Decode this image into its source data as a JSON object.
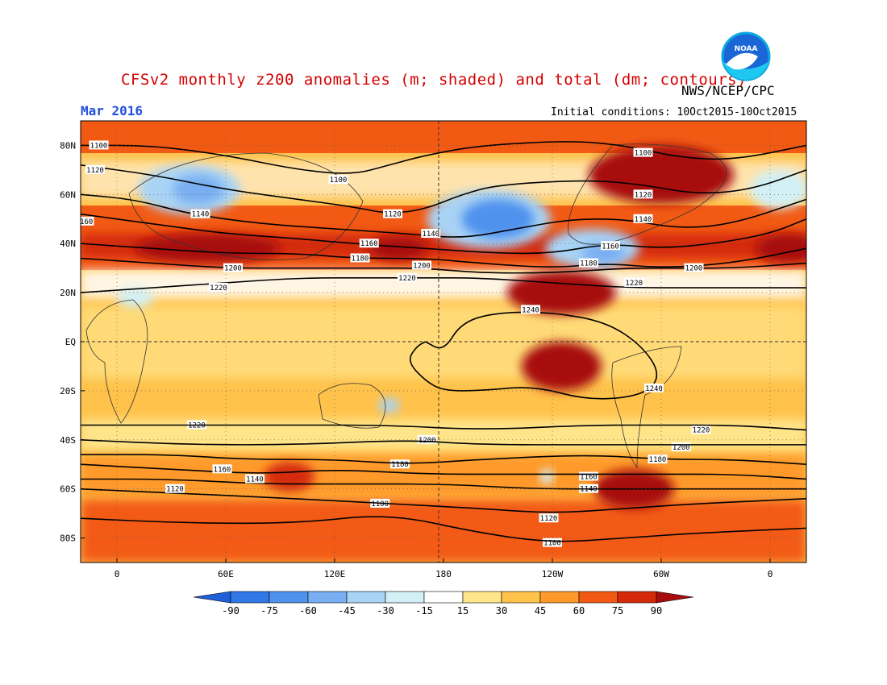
{
  "header": {
    "title": "CFSv2 monthly z200 anomalies (m; shaded) and total (dm; contours)",
    "agency": "NWS/NCEP/CPC",
    "month": "Mar 2016",
    "initial_conditions": "Initial conditions: 10Oct2015-10Oct2015",
    "logo_text": "NOAA"
  },
  "axes": {
    "lat_ticks": [
      "80N",
      "60N",
      "40N",
      "20N",
      "EQ",
      "20S",
      "40S",
      "60S",
      "80S"
    ],
    "lat_values": [
      80,
      60,
      40,
      20,
      0,
      -20,
      -40,
      -60,
      -80
    ],
    "lon_ticks": [
      "0",
      "60E",
      "120E",
      "180",
      "120W",
      "60W",
      "0"
    ],
    "lon_values": [
      0,
      60,
      120,
      180,
      240,
      300,
      360
    ],
    "lon_range": [
      -20,
      380
    ],
    "lat_range": [
      -90,
      90
    ]
  },
  "colorbar": {
    "labels": [
      "-90",
      "-75",
      "-60",
      "-45",
      "-30",
      "-15",
      "15",
      "30",
      "45",
      "60",
      "75",
      "90"
    ],
    "colors": [
      "#1f5fd8",
      "#2f78e6",
      "#4f92ee",
      "#78aef2",
      "#a9d3f5",
      "#d2f0f5",
      "#ffffff",
      "#ffe58a",
      "#ffc24a",
      "#ff9a2a",
      "#f25a14",
      "#d42a0a",
      "#a80c0c"
    ]
  },
  "contours": [
    {
      "label": "1100",
      "points": [
        [
          -20,
          80
        ],
        [
          20,
          80
        ],
        [
          60,
          76
        ],
        [
          100,
          70
        ],
        [
          130,
          68
        ],
        [
          150,
          72
        ],
        [
          170,
          76
        ],
        [
          200,
          80
        ],
        [
          250,
          82
        ],
        [
          280,
          80
        ],
        [
          310,
          75
        ],
        [
          340,
          74
        ],
        [
          380,
          80
        ]
      ],
      "label_at": [
        [
          -10,
          80
        ],
        [
          122,
          66
        ],
        [
          290,
          77
        ],
        [
          145,
          -66
        ],
        [
          240,
          -82
        ]
      ]
    },
    {
      "label": "1120",
      "points": [
        [
          -20,
          72
        ],
        [
          20,
          68
        ],
        [
          60,
          62
        ],
        [
          100,
          58
        ],
        [
          130,
          55
        ],
        [
          150,
          52
        ],
        [
          170,
          54
        ],
        [
          190,
          60
        ],
        [
          210,
          64
        ],
        [
          260,
          66
        ],
        [
          290,
          64
        ],
        [
          320,
          60
        ],
        [
          350,
          62
        ],
        [
          380,
          70
        ]
      ],
      "label_at": [
        [
          -12,
          70
        ],
        [
          152,
          52
        ],
        [
          290,
          60
        ],
        [
          238,
          -72
        ]
      ]
    },
    {
      "label": "1140",
      "points": [
        [
          -20,
          60
        ],
        [
          10,
          58
        ],
        [
          40,
          52
        ],
        [
          80,
          48
        ],
        [
          120,
          46
        ],
        [
          160,
          44
        ],
        [
          190,
          42
        ],
        [
          220,
          46
        ],
        [
          250,
          50
        ],
        [
          280,
          50
        ],
        [
          310,
          46
        ],
        [
          340,
          48
        ],
        [
          380,
          58
        ]
      ],
      "label_at": [
        [
          46,
          52
        ],
        [
          173,
          44
        ],
        [
          290,
          50
        ],
        [
          260,
          -60
        ]
      ]
    },
    {
      "label": "1160",
      "points": [
        [
          -20,
          52
        ],
        [
          20,
          48
        ],
        [
          60,
          44
        ],
        [
          100,
          42
        ],
        [
          130,
          40
        ],
        [
          170,
          38
        ],
        [
          210,
          36
        ],
        [
          240,
          36
        ],
        [
          270,
          40
        ],
        [
          300,
          38
        ],
        [
          330,
          40
        ],
        [
          360,
          44
        ],
        [
          380,
          50
        ]
      ],
      "label_at": [
        [
          -18,
          49
        ],
        [
          139,
          40
        ],
        [
          272,
          39
        ],
        [
          260,
          -55
        ]
      ]
    },
    {
      "label": "1180",
      "points": [
        [
          -20,
          40
        ],
        [
          20,
          38
        ],
        [
          60,
          36
        ],
        [
          100,
          36
        ],
        [
          130,
          34
        ],
        [
          170,
          34
        ],
        [
          200,
          32
        ],
        [
          240,
          30
        ],
        [
          270,
          32
        ],
        [
          300,
          30
        ],
        [
          340,
          32
        ],
        [
          380,
          38
        ]
      ],
      "label_at": [
        [
          134,
          34
        ],
        [
          260,
          32
        ],
        [
          156,
          -50
        ]
      ]
    },
    {
      "label": "1200",
      "points": [
        [
          -20,
          34
        ],
        [
          20,
          32
        ],
        [
          60,
          30
        ],
        [
          100,
          30
        ],
        [
          140,
          30
        ],
        [
          170,
          30
        ],
        [
          200,
          28
        ],
        [
          240,
          28
        ],
        [
          280,
          30
        ],
        [
          310,
          30
        ],
        [
          340,
          30
        ],
        [
          380,
          32
        ]
      ],
      "label_at": [
        [
          64,
          30
        ],
        [
          168,
          31
        ],
        [
          318,
          30
        ],
        [
          171,
          -40
        ],
        [
          311,
          -43
        ]
      ]
    },
    {
      "label": "1220",
      "points": [
        [
          -20,
          20
        ],
        [
          20,
          22
        ],
        [
          60,
          24
        ],
        [
          100,
          26
        ],
        [
          140,
          26
        ],
        [
          170,
          26
        ],
        [
          200,
          26
        ],
        [
          240,
          24
        ],
        [
          280,
          22
        ],
        [
          320,
          22
        ],
        [
          380,
          22
        ]
      ],
      "label_at": [
        [
          56,
          22
        ],
        [
          160,
          26
        ],
        [
          285,
          24
        ],
        [
          44,
          -34
        ],
        [
          322,
          -36
        ]
      ]
    },
    {
      "label": "1240",
      "points": [
        [
          170,
          0
        ],
        [
          180,
          -4
        ],
        [
          190,
          8
        ],
        [
          210,
          12
        ],
        [
          240,
          12
        ],
        [
          270,
          8
        ],
        [
          290,
          -2
        ],
        [
          300,
          -14
        ],
        [
          290,
          -22
        ],
        [
          260,
          -24
        ],
        [
          230,
          -18
        ],
        [
          200,
          -20
        ],
        [
          180,
          -20
        ],
        [
          170,
          -16
        ],
        [
          160,
          -8
        ],
        [
          165,
          -2
        ],
        [
          170,
          0
        ]
      ],
      "label_at": [
        [
          228,
          13
        ],
        [
          296,
          -19
        ]
      ]
    },
    {
      "label": "1220",
      "points": [
        [
          -20,
          -34
        ],
        [
          40,
          -34
        ],
        [
          100,
          -34
        ],
        [
          150,
          -34
        ],
        [
          200,
          -36
        ],
        [
          260,
          -34
        ],
        [
          300,
          -34
        ],
        [
          340,
          -34
        ],
        [
          380,
          -36
        ]
      ],
      "label_at": []
    },
    {
      "label": "1200",
      "points": [
        [
          -20,
          -40
        ],
        [
          40,
          -42
        ],
        [
          100,
          -42
        ],
        [
          160,
          -40
        ],
        [
          200,
          -42
        ],
        [
          260,
          -42
        ],
        [
          310,
          -42
        ],
        [
          380,
          -42
        ]
      ],
      "label_at": []
    },
    {
      "label": "1180",
      "points": [
        [
          -20,
          -46
        ],
        [
          30,
          -46
        ],
        [
          70,
          -48
        ],
        [
          120,
          -48
        ],
        [
          160,
          -50
        ],
        [
          200,
          -48
        ],
        [
          260,
          -46
        ],
        [
          300,
          -48
        ],
        [
          340,
          -48
        ],
        [
          380,
          -50
        ]
      ],
      "label_at": [
        [
          298,
          -48
        ]
      ]
    },
    {
      "label": "1160",
      "points": [
        [
          -20,
          -50
        ],
        [
          30,
          -52
        ],
        [
          80,
          -54
        ],
        [
          120,
          -52
        ],
        [
          170,
          -54
        ],
        [
          220,
          -54
        ],
        [
          260,
          -54
        ],
        [
          300,
          -54
        ],
        [
          340,
          -54
        ],
        [
          380,
          -56
        ]
      ],
      "label_at": [
        [
          58,
          -52
        ]
      ]
    },
    {
      "label": "1140",
      "points": [
        [
          -20,
          -56
        ],
        [
          30,
          -56
        ],
        [
          80,
          -58
        ],
        [
          130,
          -58
        ],
        [
          180,
          -58
        ],
        [
          230,
          -60
        ],
        [
          270,
          -60
        ],
        [
          320,
          -60
        ],
        [
          380,
          -60
        ]
      ],
      "label_at": [
        [
          76,
          -56
        ]
      ]
    },
    {
      "label": "1120",
      "points": [
        [
          -20,
          -60
        ],
        [
          40,
          -62
        ],
        [
          100,
          -64
        ],
        [
          150,
          -66
        ],
        [
          200,
          -68
        ],
        [
          240,
          -70
        ],
        [
          280,
          -68
        ],
        [
          320,
          -66
        ],
        [
          380,
          -64
        ]
      ],
      "label_at": [
        [
          32,
          -60
        ]
      ]
    },
    {
      "label": "1100",
      "points": [
        [
          -20,
          -72
        ],
        [
          40,
          -74
        ],
        [
          100,
          -74
        ],
        [
          150,
          -70
        ],
        [
          200,
          -78
        ],
        [
          240,
          -82
        ],
        [
          280,
          -80
        ],
        [
          320,
          -78
        ],
        [
          380,
          -76
        ]
      ],
      "label_at": []
    }
  ],
  "anomaly_blobs": [
    {
      "lon": 40,
      "lat": 62,
      "rx": 28,
      "ry": 10,
      "level": "-30"
    },
    {
      "lon": 45,
      "lat": 62,
      "rx": 14,
      "ry": 6,
      "level": "-45"
    },
    {
      "lon": 205,
      "lat": 50,
      "rx": 34,
      "ry": 12,
      "level": "-30"
    },
    {
      "lon": 210,
      "lat": 50,
      "rx": 20,
      "ry": 8,
      "level": "-60"
    },
    {
      "lon": 262,
      "lat": 38,
      "rx": 26,
      "ry": 8,
      "level": "-30"
    },
    {
      "lon": 268,
      "lat": 36,
      "rx": 12,
      "ry": 4,
      "level": "-45"
    },
    {
      "lon": 365,
      "lat": 62,
      "rx": 16,
      "ry": 8,
      "level": "-15"
    },
    {
      "lon": 10,
      "lat": 18,
      "rx": 10,
      "ry": 4,
      "level": "-15"
    },
    {
      "lon": 150,
      "lat": -26,
      "rx": 6,
      "ry": 3,
      "level": "-30"
    },
    {
      "lon": 237,
      "lat": -55,
      "rx": 4,
      "ry": 3,
      "level": "-15"
    },
    {
      "lon": 300,
      "lat": 68,
      "rx": 40,
      "ry": 12,
      "level": "90"
    },
    {
      "lon": 245,
      "lat": 20,
      "rx": 30,
      "ry": 9,
      "level": "90"
    },
    {
      "lon": 245,
      "lat": -10,
      "rx": 22,
      "ry": 10,
      "level": "90"
    },
    {
      "lon": 285,
      "lat": -60,
      "rx": 22,
      "ry": 8,
      "level": "90"
    },
    {
      "lon": 50,
      "lat": 38,
      "rx": 40,
      "ry": 6,
      "level": "90"
    },
    {
      "lon": 155,
      "lat": 38,
      "rx": 16,
      "ry": 5,
      "level": "90"
    },
    {
      "lon": 370,
      "lat": 38,
      "rx": 18,
      "ry": 6,
      "level": "90"
    },
    {
      "lon": 95,
      "lat": -55,
      "rx": 14,
      "ry": 6,
      "level": "75"
    }
  ]
}
